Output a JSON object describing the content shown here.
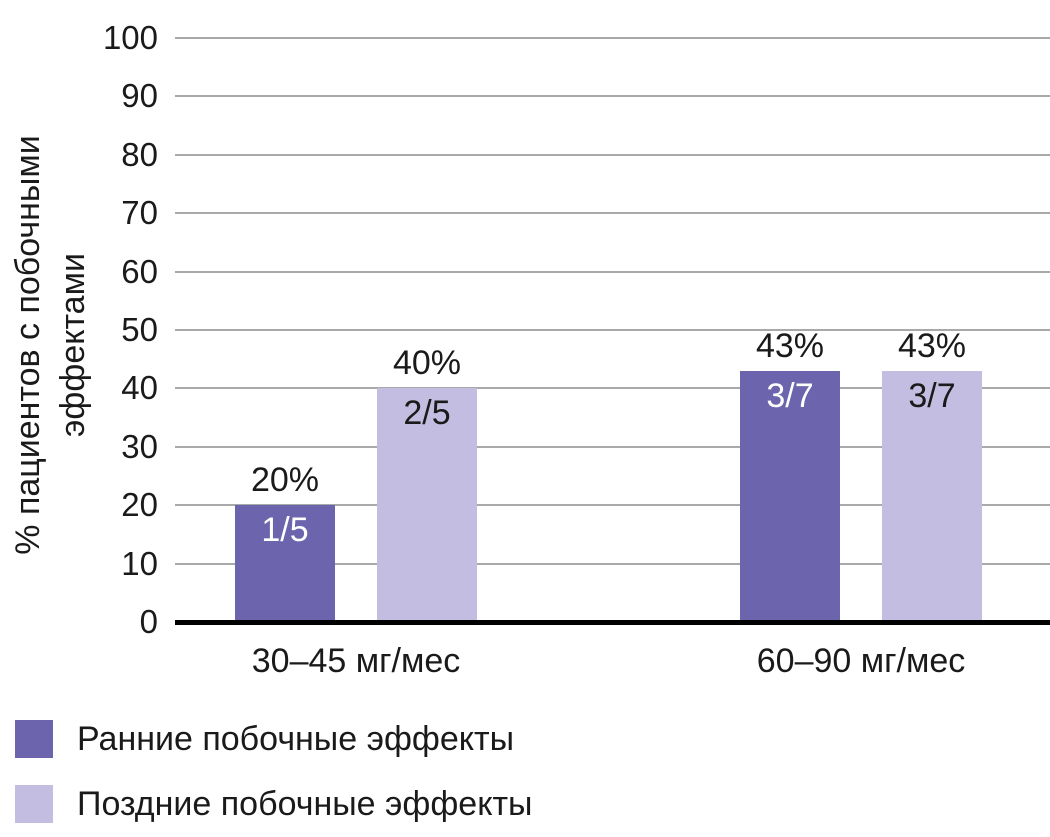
{
  "chart_data": {
    "type": "bar",
    "title": "",
    "categories": [
      "30–45 мг/мес",
      "60–90 мг/мес"
    ],
    "series": [
      {
        "name": "Ранние побочные эффекты",
        "color": "#6c64ad",
        "values": [
          20,
          43
        ],
        "value_labels": [
          "20%",
          "43%"
        ],
        "inner_labels": [
          "1/5",
          "3/7"
        ],
        "inner_label_color": "#ffffff"
      },
      {
        "name": "Поздние побочные эффекты",
        "color": "#c3bde2",
        "values": [
          40,
          43
        ],
        "value_labels": [
          "40%",
          "43%"
        ],
        "inner_labels": [
          "2/5",
          "3/7"
        ],
        "inner_label_color": "#1a1a1a"
      }
    ],
    "ylabel": "% пациентов с побочными эффектами",
    "ylabel_lines": [
      "% пациентов с побочными",
      "эффектами"
    ],
    "ylim": [
      0,
      100
    ],
    "yticks": [
      0,
      10,
      20,
      30,
      40,
      50,
      60,
      70,
      80,
      90,
      100
    ],
    "grid": true,
    "gridline_color": "#a9a9a9",
    "axis_color": "#000000",
    "legend_position": "bottom-left"
  }
}
